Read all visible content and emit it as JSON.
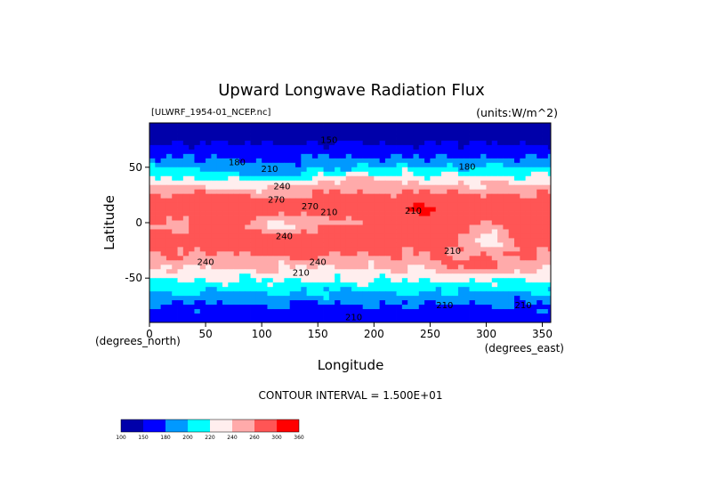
{
  "chart_data": {
    "type": "heatmap",
    "title": "Upward Longwave Radiation Flux",
    "file_label": "[ULWRF_1954-01_NCEP.nc]",
    "units_label": "(units:W/m^2)",
    "xlabel": "Longitude",
    "ylabel": "Latitude",
    "x_unit_label": "(degrees_east)",
    "y_unit_label": "(degrees_north)",
    "xlim": [
      0,
      357.5
    ],
    "ylim": [
      -90,
      90
    ],
    "x_ticks": [
      0,
      50,
      100,
      150,
      200,
      250,
      300,
      350
    ],
    "y_ticks": [
      50,
      0,
      -50
    ],
    "contour_interval_text": "CONTOUR INTERVAL = 1.500E+01",
    "contour_interval": 15,
    "levels": [
      100,
      150,
      180,
      200,
      220,
      240,
      260,
      300,
      360
    ],
    "colorbar_ticks": [
      "100",
      "150",
      "180",
      "200",
      "220",
      "240",
      "260",
      "300",
      "360"
    ],
    "colors": [
      "#0000aa",
      "#0000ff",
      "#0099ff",
      "#00ffff",
      "#ffeeee",
      "#ffaaaa",
      "#ff5555",
      "#ff0000"
    ],
    "contour_labels": [
      {
        "text": "150",
        "lon": 160,
        "lat": 72
      },
      {
        "text": "180",
        "lon": 78,
        "lat": 52
      },
      {
        "text": "180",
        "lon": 283,
        "lat": 48
      },
      {
        "text": "210",
        "lon": 107,
        "lat": 46
      },
      {
        "text": "240",
        "lon": 118,
        "lat": 30
      },
      {
        "text": "270",
        "lon": 113,
        "lat": 18
      },
      {
        "text": "270",
        "lon": 143,
        "lat": 12
      },
      {
        "text": "210",
        "lon": 160,
        "lat": 7
      },
      {
        "text": "210",
        "lon": 235,
        "lat": 8
      },
      {
        "text": "240",
        "lon": 120,
        "lat": -15
      },
      {
        "text": "210",
        "lon": 270,
        "lat": -28
      },
      {
        "text": "240",
        "lon": 50,
        "lat": -38
      },
      {
        "text": "240",
        "lon": 150,
        "lat": -38
      },
      {
        "text": "210",
        "lon": 135,
        "lat": -48
      },
      {
        "text": "210",
        "lon": 263,
        "lat": -77
      },
      {
        "text": "210",
        "lon": 333,
        "lat": -77
      },
      {
        "text": "210",
        "lon": 182,
        "lat": -88
      }
    ]
  }
}
